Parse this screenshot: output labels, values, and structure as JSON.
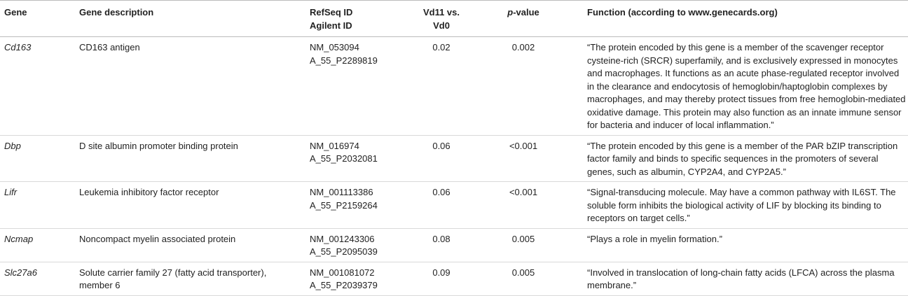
{
  "table": {
    "header": [
      "Gene",
      "Gene description",
      [
        "RefSeq ID",
        "Agilent ID"
      ],
      "Vd11 vs. Vd0",
      "p-value",
      "Function (according to www.genecards.org)"
    ],
    "rows": [
      [
        "Cd163",
        "CD163 antigen",
        [
          "NM_053094",
          "A_55_P2289819"
        ],
        0.02,
        0.002,
        "“The protein encoded by this gene is a member of the scavenger receptor cysteine-rich (SRCR) superfamily, and is exclusively expressed in monocytes and macrophages. It functions as an acute phase-regulated receptor involved in the clearance and endocytosis of hemoglobin/haptoglobin complexes by macrophages, and may thereby protect tissues from free hemoglobin-mediated oxidative damage. This protein may also function as an innate immune sensor for bacteria and inducer of local inflammation.”"
      ],
      [
        "Dbp",
        "D site albumin promoter binding protein",
        [
          "NM_016974",
          "A_55_P2032081"
        ],
        0.06,
        "<0.001",
        "“The protein encoded by this gene is a member of the PAR bZIP transcription factor family and binds to specific sequences in the promoters of several genes, such as albumin, CYP2A4, and CYP2A5.”"
      ],
      [
        "Lifr",
        "Leukemia inhibitory factor receptor",
        [
          "NM_001113386",
          "A_55_P2159264"
        ],
        0.06,
        "<0.001",
        "“Signal-transducing molecule. May have a common pathway with IL6ST. The soluble form inhibits the biological activity of LIF by blocking its binding to receptors on target cells.”"
      ],
      [
        "Ncmap",
        "Noncompact myelin associated protein",
        [
          "NM_001243306",
          "A_55_P2095039"
        ],
        0.08,
        0.005,
        "“Plays a role in myelin formation.”"
      ],
      [
        "Slc27a6",
        "Solute carrier family 27 (fatty acid transporter), member 6",
        [
          "NM_001081072",
          "A_55_P2039379"
        ],
        0.09,
        0.005,
        "“Involved in translocation of long-chain fatty acids (LFCA) across the plasma membrane.”"
      ]
    ]
  }
}
